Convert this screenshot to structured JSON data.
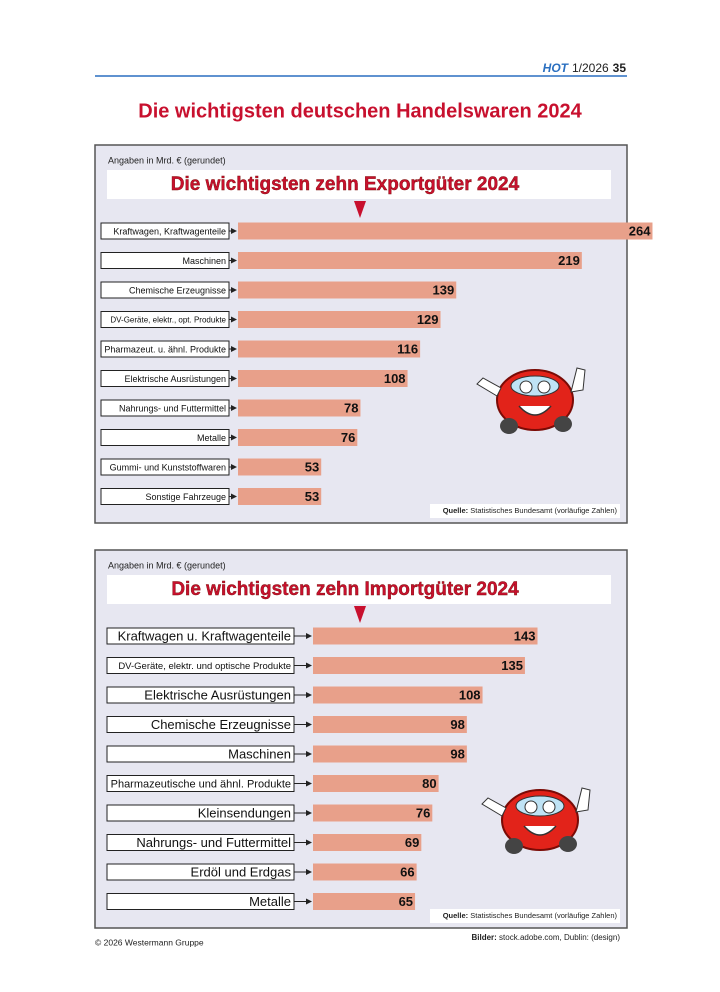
{
  "header": {
    "brand": "HOT",
    "issue": "1/2026",
    "page": "35"
  },
  "title": "Die wichtigsten deutschen Handelswaren 2024",
  "chart_data": [
    {
      "type": "bar",
      "orientation": "horizontal",
      "note": "Angaben in Mrd. € (gerundet)",
      "title": "Die wichtigsten zehn Exportgüter 2024",
      "categories": [
        "Kraftwagen, Kraftwagenteile",
        "Maschinen",
        "Chemische Erzeugnisse",
        "DV-Geräte, elektr., opt. Produkte",
        "Pharmazeut. u. ähnl. Produkte",
        "Elektrische Ausrüstungen",
        "Nahrungs- und Futtermittel",
        "Metalle",
        "Gummi- und Kunststoffwaren",
        "Sonstige Fahrzeuge"
      ],
      "values": [
        264,
        219,
        139,
        129,
        116,
        108,
        78,
        76,
        53,
        53
      ],
      "color": "#e8a08a",
      "source_label": "Quelle:",
      "source": "Statistisches Bundesamt (vorläufige Zahlen)"
    },
    {
      "type": "bar",
      "orientation": "horizontal",
      "note": "Angaben in Mrd. € (gerundet)",
      "title": "Die wichtigsten zehn Importgüter 2024",
      "categories": [
        "Kraftwagen u. Kraftwagenteile",
        "DV-Geräte, elektr. und optische Produkte",
        "Elektrische Ausrüstungen",
        "Chemische Erzeugnisse",
        "Maschinen",
        "Pharmazeutische und ähnl. Produkte",
        "Kleinsendungen",
        "Nahrungs- und Futtermittel",
        "Erdöl und Erdgas",
        "Metalle"
      ],
      "values": [
        143,
        135,
        108,
        98,
        98,
        80,
        76,
        69,
        66,
        65
      ],
      "color": "#e8a08a",
      "source_label": "Quelle:",
      "source": "Statistisches Bundesamt (vorläufige Zahlen)"
    }
  ],
  "footer": {
    "copyright": "© 2026 Westermann Gruppe",
    "credits_label": "Bilder:",
    "credits": "stock.adobe.com, Dublin: (design)"
  }
}
